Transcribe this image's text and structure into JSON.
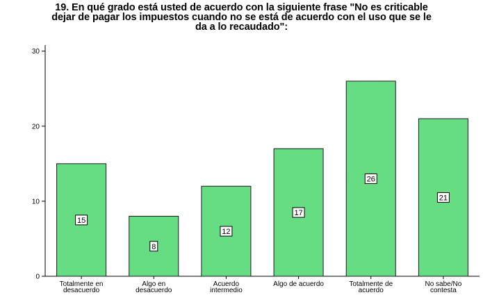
{
  "chart_data": {
    "type": "bar",
    "title_lines": [
      "19. En qué grado está usted de acuerdo con la siguiente frase \"No es criticable",
      "dejar de pagar los impuestos cuando no se está de acuerdo con el uso que se le",
      "da a lo recaudado\":"
    ],
    "categories": [
      [
        "Totalmente en",
        "desacuerdo"
      ],
      [
        "Algo en",
        "desacuerdo"
      ],
      [
        "Acuerdo",
        "intermedio"
      ],
      [
        "Algo de acuerdo"
      ],
      [
        "Totalmente de",
        "acuerdo"
      ],
      [
        "No sabe/No",
        "contesta"
      ]
    ],
    "values": [
      15,
      8,
      12,
      17,
      26,
      21
    ],
    "data_labels": [
      "15",
      "8",
      "12",
      "17",
      "26",
      "21"
    ],
    "y_ticks": [
      0,
      10,
      20,
      30
    ],
    "ylim": [
      0,
      30.8
    ],
    "bar_color": "#66dd82",
    "bar_stroke": "#1a1a1a",
    "grid": false,
    "legend": "none"
  }
}
